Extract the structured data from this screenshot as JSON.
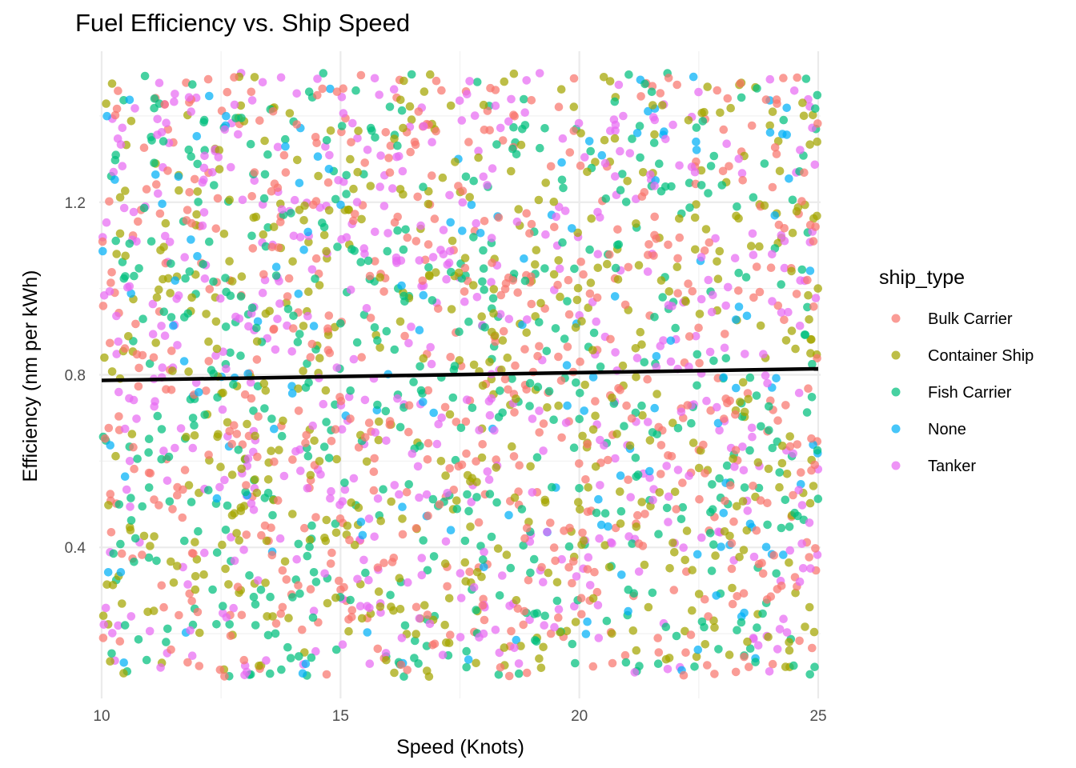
{
  "chart_data": {
    "type": "scatter",
    "title": "Fuel Efficiency vs. Ship Speed",
    "xlabel": "Speed (Knots)",
    "ylabel": "Efficiency (nm per kWh)",
    "xlim": [
      9.95,
      25.05
    ],
    "ylim": [
      0.05,
      1.55
    ],
    "x_ticks": [
      10,
      15,
      20,
      25
    ],
    "x_tick_labels": [
      "10",
      "15",
      "20",
      "25"
    ],
    "y_ticks": [
      0.4,
      0.8,
      1.2
    ],
    "y_tick_labels": [
      "0.4",
      "0.8",
      "1.2"
    ],
    "grid": true,
    "legend": {
      "title": "ship_type",
      "position": "right"
    },
    "series": [
      {
        "name": "Bulk Carrier",
        "color": "#F8766D",
        "count": 620
      },
      {
        "name": "Container Ship",
        "color": "#A3A500",
        "count": 560
      },
      {
        "name": "Fish Carrier",
        "color": "#00BF7D",
        "count": 560
      },
      {
        "name": "None",
        "color": "#00B0F6",
        "count": 150
      },
      {
        "name": "Tanker",
        "color": "#E76BF3",
        "count": 560
      }
    ],
    "x_range": [
      10,
      25
    ],
    "y_range": [
      0.1,
      1.5
    ],
    "trend_line": {
      "type": "linear",
      "x": [
        10,
        25
      ],
      "y": [
        0.787,
        0.814
      ],
      "color": "#000000"
    }
  }
}
